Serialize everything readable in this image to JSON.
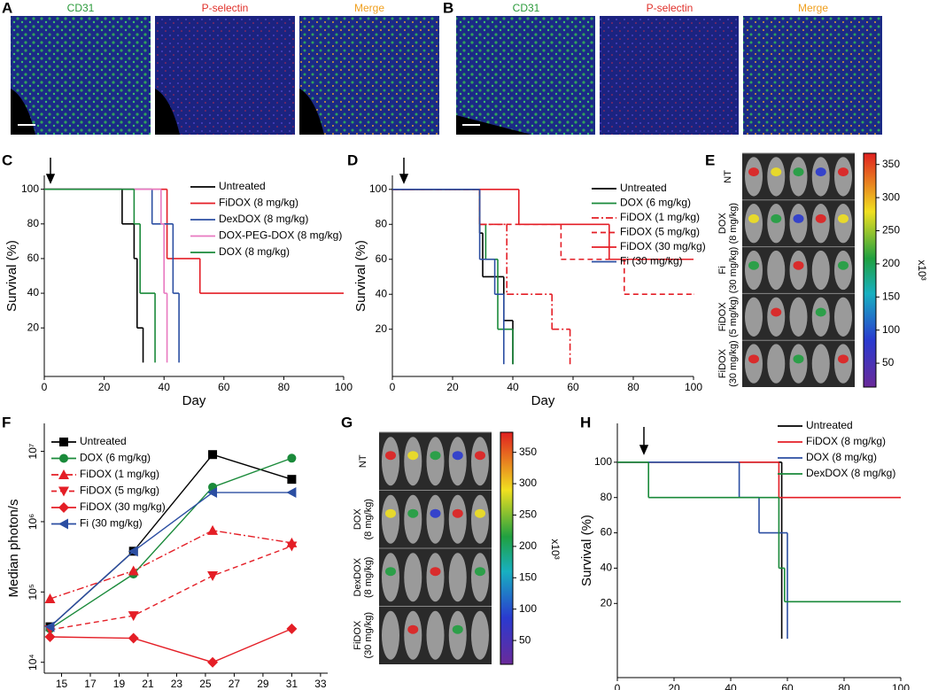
{
  "panel_labels": [
    "A",
    "B",
    "C",
    "D",
    "E",
    "F",
    "G",
    "H"
  ],
  "images": {
    "A": {
      "channels": [
        "CD31",
        "P-selectin",
        "Merge"
      ]
    },
    "B": {
      "channels": [
        "CD31",
        "P-selectin",
        "Merge"
      ]
    },
    "E": {
      "row_labels": [
        [
          "NT"
        ],
        [
          "DOX",
          "(8 mg/kg)"
        ],
        [
          "Fi",
          "(30 mg/kg)"
        ],
        [
          "FiDOX",
          "(5 mg/kg)"
        ],
        [
          "FiDOX",
          "(30 mg/kg)"
        ]
      ],
      "colorbar": {
        "lim": [
          14,
          367
        ],
        "ticks": [
          50,
          100,
          150,
          200,
          250,
          300,
          350
        ],
        "unit": "x10³"
      }
    },
    "G": {
      "row_labels": [
        [
          "NT"
        ],
        [
          "DOX",
          "(8 mg/kg)"
        ],
        [
          "DexDOX",
          "(8 mg/kg)"
        ],
        [
          "FiDOX",
          "(30 mg/kg)"
        ]
      ],
      "colorbar": {
        "lim": [
          12,
          382
        ],
        "ticks": [
          50,
          100,
          150,
          200,
          250,
          300,
          350
        ],
        "unit": "x10³"
      }
    }
  },
  "chart_data": [
    {
      "type": "step",
      "xlabel": "Day",
      "ylabel": "Survival (%)",
      "xlim": [
        0,
        100
      ],
      "xticks": [
        0,
        20,
        40,
        60,
        80,
        100
      ],
      "ylim": [
        -8,
        108
      ],
      "yticks": [
        20,
        40,
        60,
        80,
        100
      ],
      "series": [
        {
          "name": "Untreated",
          "color": "#000000",
          "dash": "solid",
          "x": [
            0,
            26,
            30,
            31,
            33
          ],
          "values": [
            100,
            80,
            60,
            20,
            0
          ]
        },
        {
          "name": "FiDOX (8 mg/kg)",
          "color": "#e41e26",
          "dash": "solid",
          "x": [
            0,
            41,
            52,
            100
          ],
          "values": [
            100,
            60,
            40,
            40
          ]
        },
        {
          "name": "DexDOX (8 mg/kg)",
          "color": "#2b4ea2",
          "dash": "solid",
          "x": [
            0,
            36,
            43,
            45
          ],
          "values": [
            100,
            80,
            40,
            0
          ]
        },
        {
          "name": "DOX-PEG-DOX (8 mg/kg)",
          "color": "#e879c0",
          "dash": "solid",
          "x": [
            0,
            39,
            40,
            41
          ],
          "values": [
            100,
            80,
            40,
            0
          ]
        },
        {
          "name": "DOX (8 mg/kg)",
          "color": "#1a8a3a",
          "dash": "solid",
          "x": [
            0,
            30,
            32,
            37
          ],
          "values": [
            100,
            80,
            40,
            0
          ]
        }
      ]
    },
    {
      "type": "step",
      "xlabel": "Day",
      "ylabel": "Survival (%)",
      "xlim": [
        0,
        100
      ],
      "xticks": [
        0,
        20,
        40,
        60,
        80,
        100
      ],
      "ylim": [
        -7,
        108
      ],
      "yticks": [
        20,
        40,
        60,
        80,
        100
      ],
      "series": [
        {
          "name": "Untreated",
          "color": "#000000",
          "dash": "solid",
          "x": [
            0,
            29,
            30,
            37,
            40
          ],
          "values": [
            100,
            75,
            50,
            25,
            0
          ]
        },
        {
          "name": "DOX (6 mg/kg)",
          "color": "#1a8a3a",
          "dash": "solid",
          "x": [
            0,
            29,
            31,
            35,
            40
          ],
          "values": [
            100,
            80,
            60,
            20,
            0
          ]
        },
        {
          "name": "FiDOX (1 mg/kg)",
          "color": "#e41e26",
          "dash": "dashdot",
          "x": [
            0,
            29,
            38,
            53,
            59
          ],
          "values": [
            100,
            80,
            40,
            20,
            0
          ]
        },
        {
          "name": "FiDOX (5 mg/kg)",
          "color": "#e41e26",
          "dash": "dashed",
          "x": [
            0,
            29,
            56,
            77,
            100
          ],
          "values": [
            100,
            80,
            60,
            40,
            40
          ]
        },
        {
          "name": "FiDOX (30 mg/kg)",
          "color": "#e41e26",
          "dash": "solid",
          "x": [
            0,
            42,
            72,
            100
          ],
          "values": [
            100,
            80,
            60,
            60
          ]
        },
        {
          "name": "Fi (30 mg/kg)",
          "color": "#2b4ea2",
          "dash": "solid",
          "x": [
            0,
            29,
            34,
            37
          ],
          "values": [
            100,
            60,
            40,
            0
          ]
        }
      ]
    },
    {
      "type": "line",
      "xlabel": "Day",
      "ylabel": "Median photon/s",
      "log_y": true,
      "xlim": [
        13.8,
        33.5
      ],
      "xticks": [
        15,
        17,
        19,
        21,
        23,
        25,
        27,
        29,
        31,
        33
      ],
      "ylim": [
        7000,
        25000000
      ],
      "yticks": [
        {
          "value": 10000,
          "label": "10⁴"
        },
        {
          "value": 100000,
          "label": "10⁵"
        },
        {
          "value": 1000000,
          "label": "10⁶"
        },
        {
          "value": 10000000,
          "label": "10⁷"
        }
      ],
      "x": [
        14.2,
        20,
        25.5,
        31
      ],
      "series": [
        {
          "name": "Untreated",
          "color": "#000000",
          "dash": "solid",
          "marker": "square",
          "values": [
            32000,
            380000,
            9000000,
            4000000
          ]
        },
        {
          "name": "DOX (6  mg/kg)",
          "color": "#1a8a3a",
          "dash": "solid",
          "marker": "circle",
          "values": [
            30000,
            180000,
            3100000,
            8000000
          ]
        },
        {
          "name": "FiDOX (1 mg/kg)",
          "color": "#e41e26",
          "dash": "dashdot",
          "marker": "triangle-up",
          "values": [
            80000,
            200000,
            750000,
            500000
          ]
        },
        {
          "name": "FiDOX (5 mg/kg)",
          "color": "#e41e26",
          "dash": "dashed",
          "marker": "triangle-down",
          "values": [
            29000,
            46000,
            170000,
            450000
          ]
        },
        {
          "name": "FiDOX (30 mg/kg)",
          "color": "#e41e26",
          "dash": "solid",
          "marker": "diamond",
          "values": [
            23000,
            22000,
            10000,
            30000
          ]
        },
        {
          "name": "Fi (30 mg/kg)",
          "color": "#2b4ea2",
          "dash": "solid",
          "marker": "triangle-left",
          "values": [
            32000,
            380000,
            2600000,
            2600000
          ]
        }
      ]
    },
    {
      "type": "step",
      "xlabel": "Day",
      "ylabel": "Survival (%)",
      "xlim": [
        0,
        100
      ],
      "xticks": [
        0,
        20,
        40,
        60,
        80,
        100
      ],
      "ylim": [
        -22,
        122
      ],
      "yticks": [
        20,
        40,
        60,
        80,
        100
      ],
      "series": [
        {
          "name": "Untreated",
          "color": "#000000",
          "dash": "solid",
          "x": [
            0,
            58
          ],
          "values": [
            100,
            0
          ]
        },
        {
          "name": "FiDOX (8 mg/kg)",
          "color": "#e41e26",
          "dash": "solid",
          "x": [
            0,
            57,
            100
          ],
          "values": [
            100,
            80,
            80
          ]
        },
        {
          "name": "DOX (8 mg/kg)",
          "color": "#2b4ea2",
          "dash": "solid",
          "x": [
            0,
            43,
            50,
            60
          ],
          "values": [
            100,
            80,
            60,
            0
          ]
        },
        {
          "name": "DexDOX (8 mg/kg)",
          "color": "#1a8a3a",
          "dash": "solid",
          "x": [
            0,
            11,
            57,
            59,
            100
          ],
          "values": [
            100,
            80,
            40,
            21,
            21
          ]
        }
      ]
    }
  ]
}
